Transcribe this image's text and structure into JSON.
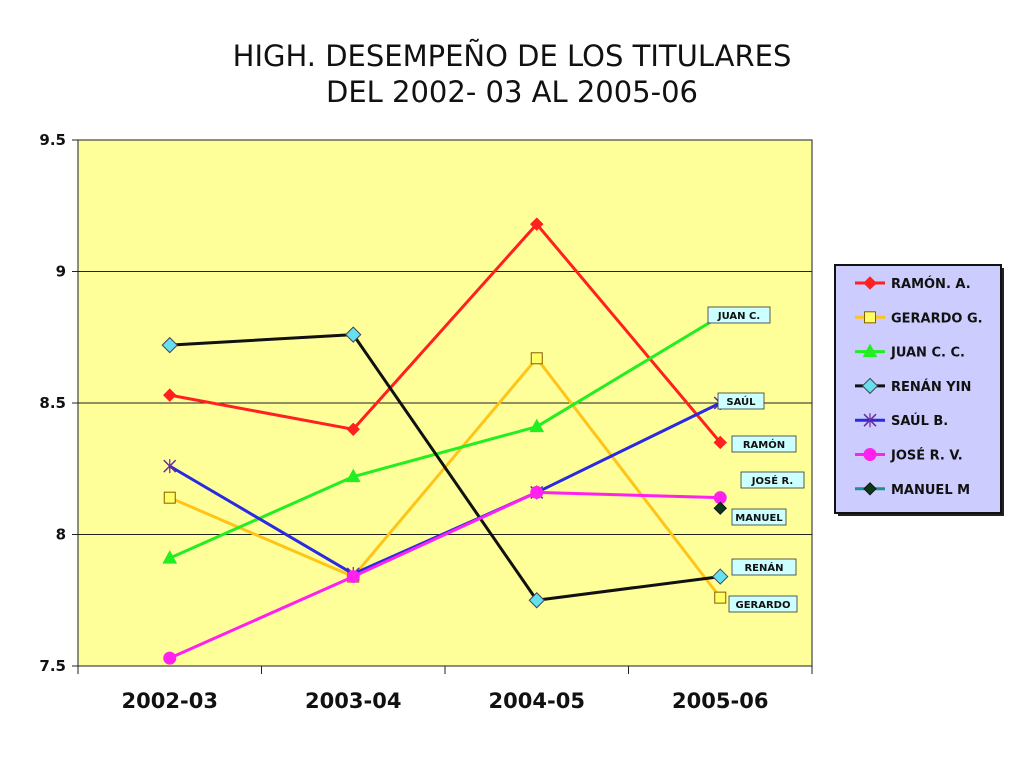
{
  "chart_data": {
    "type": "line",
    "title": [
      "HIGH. DESEMPEÑO DE LOS TITULARES",
      "DEL 2002- 03 AL 2005-06"
    ],
    "xlabel": "",
    "ylabel": "",
    "categories": [
      "2002-03",
      "2003-04",
      "2004-05",
      "2005-06"
    ],
    "ylim": [
      7.5,
      9.5
    ],
    "yticks": [
      "7.5",
      "8",
      "8.5",
      "9",
      "9.5"
    ],
    "ytick_values": [
      7.5,
      8,
      8.5,
      9,
      9.5
    ],
    "grid": true,
    "plot_background": "#ffff99",
    "legend_background": "#ccccff",
    "legend_position": "right",
    "series": [
      {
        "name": "RAMÓN. A.",
        "color": "#ff2020",
        "marker": "diamond",
        "values": [
          8.53,
          8.4,
          9.18,
          8.35
        ]
      },
      {
        "name": "GERARDO G.",
        "color": "#ffc41a",
        "marker": "square",
        "values": [
          8.14,
          7.84,
          8.67,
          7.76
        ]
      },
      {
        "name": "JUAN C. C.",
        "color": "#22ee22",
        "marker": "triangle",
        "values": [
          7.91,
          8.22,
          8.41,
          8.83
        ]
      },
      {
        "name": "RENÁN YIN",
        "color": "#111111",
        "marker": "diamond-cyan",
        "values": [
          8.72,
          8.76,
          7.75,
          7.84
        ]
      },
      {
        "name": "SAÚL B.",
        "color": "#2a2ae0",
        "marker": "star",
        "values": [
          8.26,
          7.85,
          8.16,
          8.5
        ]
      },
      {
        "name": "JOSÉ R. V.",
        "color": "#ff22ee",
        "marker": "circle",
        "values": [
          7.53,
          7.84,
          8.16,
          8.14
        ]
      },
      {
        "name": "MANUEL M",
        "color": "#1f8f8f",
        "marker": "diamond-dark",
        "values": [
          null,
          null,
          null,
          8.1
        ]
      }
    ],
    "annotations": [
      "JUAN C.",
      "SAÚL",
      "RAMÓN",
      "JOSÉ R.",
      "MANUEL",
      "RENÁN",
      "GERARDO"
    ]
  }
}
